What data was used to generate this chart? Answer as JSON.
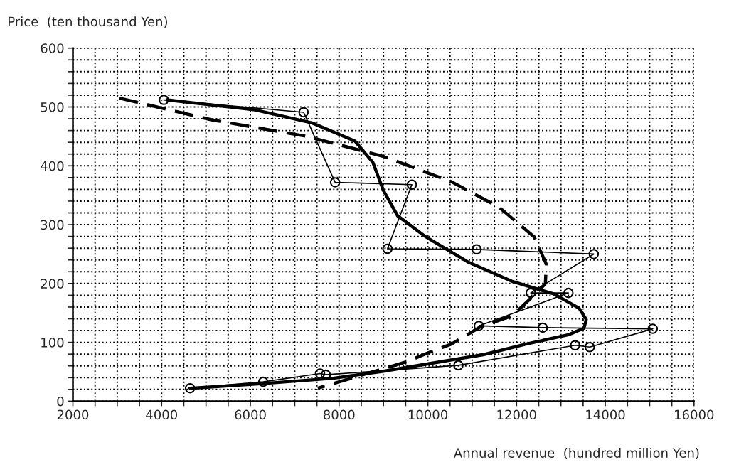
{
  "chart_data": {
    "type": "line",
    "xlabel": "Annual revenue  (hundred million Yen)",
    "ylabel": "Price  (ten thousand Yen)",
    "xlim": [
      2000,
      16000
    ],
    "ylim": [
      0,
      600
    ],
    "xticks": [
      2000,
      {
        "value": 2500,
        "label": null
      },
      {
        "value": 3000,
        "label": null
      },
      {
        "value": 3500,
        "label": null
      },
      4000,
      {
        "value": 4500,
        "label": null
      },
      {
        "value": 5000,
        "label": null
      },
      {
        "value": 5500,
        "label": null
      },
      6000,
      {
        "value": 6500,
        "label": null
      },
      {
        "value": 7000,
        "label": null
      },
      {
        "value": 7500,
        "label": null
      },
      8000,
      {
        "value": 8500,
        "label": null
      },
      {
        "value": 9000,
        "label": null
      },
      {
        "value": 9500,
        "label": null
      },
      10000,
      {
        "value": 10500,
        "label": null
      },
      {
        "value": 11000,
        "label": null
      },
      {
        "value": 11500,
        "label": null
      },
      12000,
      {
        "value": 12500,
        "label": null
      },
      {
        "value": 13000,
        "label": null
      },
      {
        "value": 13500,
        "label": null
      },
      14000,
      {
        "value": 14500,
        "label": null
      },
      {
        "value": 15000,
        "label": null
      },
      {
        "value": 15500,
        "label": null
      },
      16000
    ],
    "yticks": [
      0,
      {
        "value": 20,
        "label": null
      },
      {
        "value": 40,
        "label": null
      },
      {
        "value": 60,
        "label": null
      },
      {
        "value": 80,
        "label": null
      },
      100,
      {
        "value": 120,
        "label": null
      },
      {
        "value": 140,
        "label": null
      },
      {
        "value": 160,
        "label": null
      },
      {
        "value": 180,
        "label": null
      },
      200,
      {
        "value": 220,
        "label": null
      },
      {
        "value": 240,
        "label": null
      },
      {
        "value": 260,
        "label": null
      },
      {
        "value": 280,
        "label": null
      },
      300,
      {
        "value": 320,
        "label": null
      },
      {
        "value": 340,
        "label": null
      },
      {
        "value": 360,
        "label": null
      },
      {
        "value": 380,
        "label": null
      },
      400,
      {
        "value": 420,
        "label": null
      },
      {
        "value": 440,
        "label": null
      },
      {
        "value": 460,
        "label": null
      },
      {
        "value": 480,
        "label": null
      },
      500,
      {
        "value": 520,
        "label": null
      },
      {
        "value": 540,
        "label": null
      },
      {
        "value": 560,
        "label": null
      },
      {
        "value": 580,
        "label": null
      },
      600
    ],
    "grid": true,
    "legend": false,
    "series": [
      {
        "color": "#000000",
        "marker": "circle",
        "line_style": "solid",
        "x": [
          4050,
          7200,
          7910,
          9640,
          9090,
          11100,
          13740,
          12320,
          13170,
          11150,
          12590,
          15070,
          13650,
          13320,
          10690,
          7700,
          7570,
          6290,
          4640
        ],
        "values": [
          512,
          491,
          372,
          368,
          259,
          258,
          250,
          184,
          184,
          128,
          125,
          123,
          92,
          95,
          61,
          45,
          47,
          33,
          22
        ]
      },
      {
        "color": "#000000",
        "marker": "none",
        "line_style": "solid",
        "x": [
          4120,
          6110,
          7390,
          8360,
          8760,
          9000,
          9320,
          9960,
          10920,
          11890,
          12850,
          13410,
          13570,
          13520,
          13170,
          12210,
          11250,
          10280,
          9000,
          7870,
          6110,
          4640
        ],
        "values": [
          512,
          495,
          473,
          442,
          406,
          358,
          315,
          279,
          236,
          204,
          182,
          158,
          139,
          124,
          113,
          97,
          79,
          67,
          51,
          39,
          29,
          22
        ]
      },
      {
        "color": "#000000",
        "marker": "none",
        "line_style": "dashed",
        "x": [
          3050,
          5140,
          7280,
          9000,
          10530,
          11600,
          12400,
          12670,
          12650,
          12480,
          11900,
          11200,
          10530,
          10000,
          9520,
          7870,
          7520
        ],
        "values": [
          515,
          478,
          450,
          416,
          373,
          330,
          279,
          233,
          200,
          186,
          145,
          127,
          97,
          82,
          67,
          30,
          22
        ]
      }
    ]
  }
}
